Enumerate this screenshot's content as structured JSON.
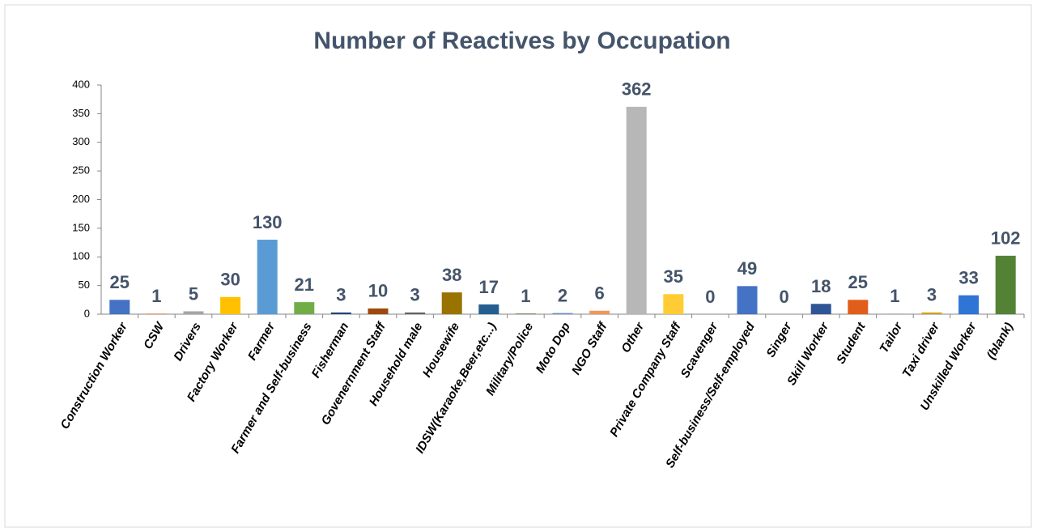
{
  "chart_data": {
    "type": "bar",
    "title": "Number of Reactives by Occupation",
    "categories": [
      "Construction Worker",
      "CSW",
      "Drivers",
      "Factory Worker",
      "Farmer",
      "Farmer and Self-business",
      "Fisherman",
      "Govenernment Staff",
      "Household male",
      "Housewife",
      "IDSW(Karaoke,Beer,etc...)",
      "Military/Police",
      "Moto Dop",
      "NGO Staff",
      "Other",
      "Private Company Staff",
      "Scavenger",
      "Self-business/Self-employed",
      "Singer",
      "Skill Worker",
      "Student",
      "Tailor",
      "Taxi driver",
      "Unskilled Worker",
      "(blank)"
    ],
    "values": [
      25,
      1,
      5,
      30,
      130,
      21,
      3,
      10,
      3,
      38,
      17,
      1,
      2,
      6,
      362,
      35,
      0,
      49,
      0,
      18,
      25,
      1,
      3,
      33,
      102
    ],
    "colors": [
      "#4472c4",
      "#ed7d31",
      "#a5a5a5",
      "#ffc000",
      "#5b9bd5",
      "#70ad47",
      "#264478",
      "#9e480e",
      "#636363",
      "#997300",
      "#255e91",
      "#43682b",
      "#698ed0",
      "#f1975a",
      "#b7b7b7",
      "#ffcd33",
      "#7cafdd",
      "#4472c4",
      "#ed7d31",
      "#2f5597",
      "#e15e1a",
      "#a5a5a5",
      "#d4a017",
      "#2e75d6",
      "#548235"
    ],
    "ylim": [
      0,
      400
    ],
    "yticks": [
      0,
      50,
      100,
      150,
      200,
      250,
      300,
      350,
      400
    ],
    "grid": false
  }
}
